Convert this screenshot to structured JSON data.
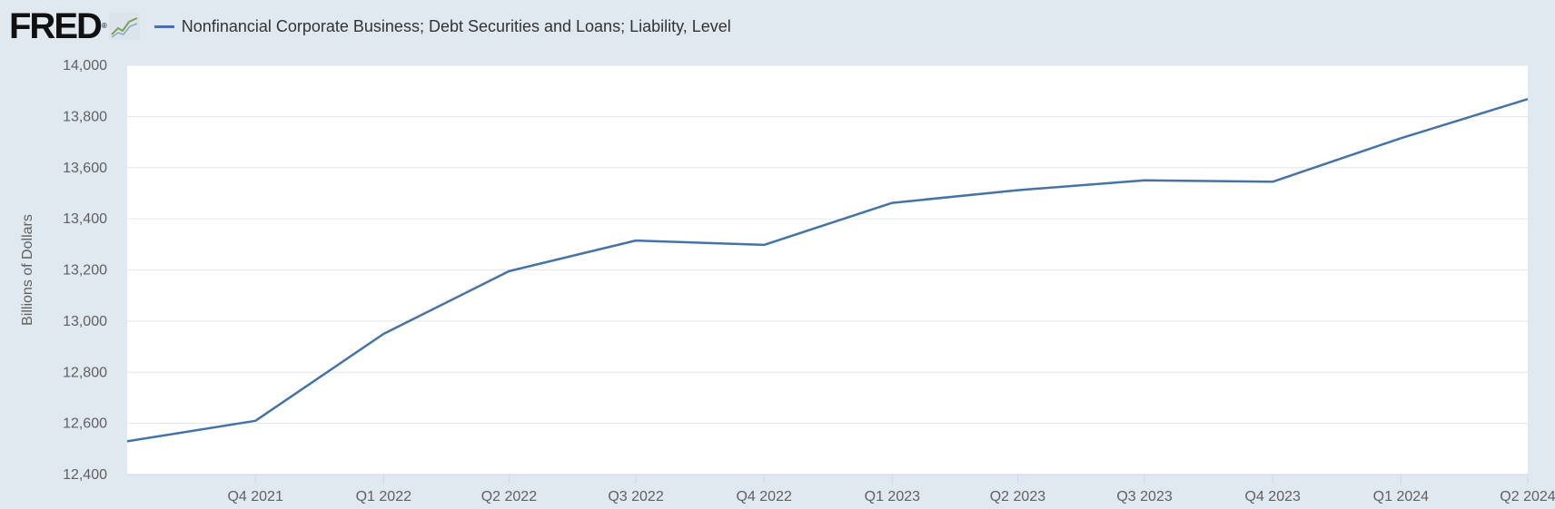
{
  "header": {
    "logo_text": "FRED",
    "logo_reg": "®",
    "legend_label": "Nonfinancial Corporate Business; Debt Securities and Loans; Liability, Level"
  },
  "colors": {
    "series": "#4572a7",
    "background": "#e1e9f0",
    "plot": "#ffffff",
    "grid": "#e6e6e6"
  },
  "icons": {
    "logo_chart": "chart-line-icon"
  },
  "chart_data": {
    "type": "line",
    "title": "",
    "ylabel": "Billions of Dollars",
    "xlabel": "",
    "ylim": [
      12400,
      14000
    ],
    "yticks": [
      12400,
      12600,
      12800,
      13000,
      13200,
      13400,
      13600,
      13800,
      14000
    ],
    "ytick_labels": [
      "12,400",
      "12,600",
      "12,800",
      "13,000",
      "13,200",
      "13,400",
      "13,600",
      "13,800",
      "14,000"
    ],
    "xticks": [
      "Q4 2021",
      "Q1 2022",
      "Q2 2022",
      "Q3 2022",
      "Q4 2022",
      "Q1 2023",
      "Q2 2023",
      "Q3 2023",
      "Q4 2023",
      "Q1 2024",
      "Q2 2024"
    ],
    "x_start": "2021-07-01",
    "grid": true,
    "legend": "top-left",
    "series": [
      {
        "name": "Nonfinancial Corporate Business; Debt Securities and Loans; Liability, Level",
        "x": [
          "2021-07-01",
          "2021-10-01",
          "2022-01-01",
          "2022-04-01",
          "2022-07-01",
          "2022-10-01",
          "2023-01-01",
          "2023-04-01",
          "2023-07-01",
          "2023-10-01",
          "2024-01-01",
          "2024-04-01"
        ],
        "values": [
          12530,
          12610,
          12950,
          13195,
          13315,
          13298,
          13462,
          13512,
          13550,
          13545,
          13715,
          13868
        ]
      }
    ]
  }
}
